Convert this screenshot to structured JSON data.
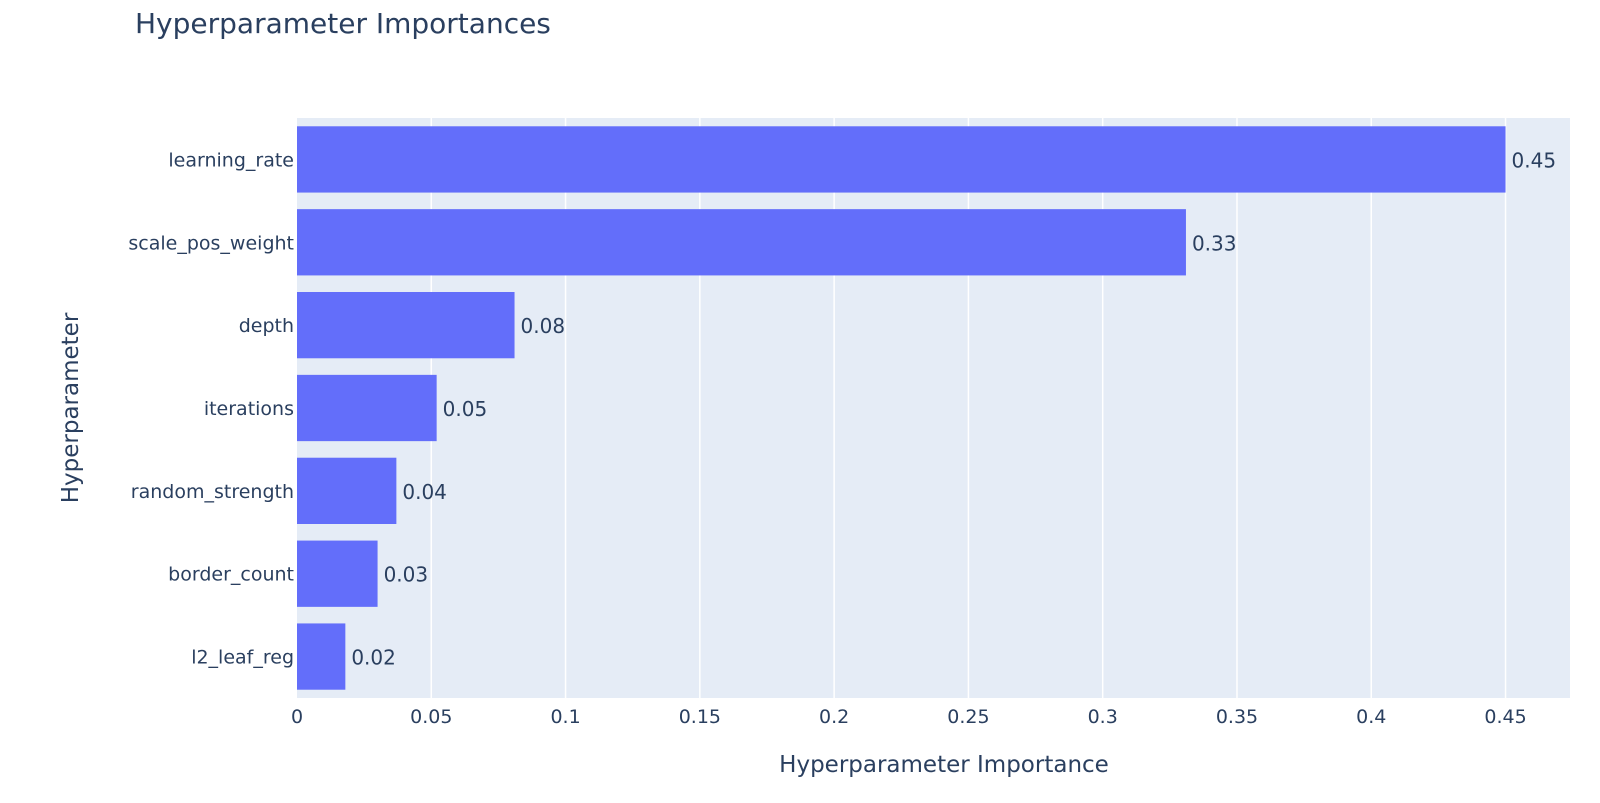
{
  "chart_data": {
    "type": "bar",
    "orientation": "horizontal",
    "title": "Hyperparameter Importances",
    "xlabel": "Hyperparameter Importance",
    "ylabel": "Hyperparameter",
    "categories": [
      "learning_rate",
      "scale_pos_weight",
      "depth",
      "iterations",
      "random_strength",
      "border_count",
      "l2_leaf_reg"
    ],
    "values": [
      0.45,
      0.331,
      0.081,
      0.052,
      0.037,
      0.03,
      0.018
    ],
    "data_labels": [
      "0.45",
      "0.33",
      "0.08",
      "0.05",
      "0.04",
      "0.03",
      "0.02"
    ],
    "xlim": [
      0,
      0.474
    ],
    "x_ticks": [
      0,
      0.05,
      0.1,
      0.15,
      0.2,
      0.25,
      0.3,
      0.35,
      0.4,
      0.45
    ],
    "x_tick_labels": [
      "0",
      "0.05",
      "0.1",
      "0.15",
      "0.2",
      "0.25",
      "0.3",
      "0.35",
      "0.4",
      "0.45"
    ],
    "grid": true,
    "legend": "none",
    "colors": {
      "bar": "#636efa",
      "plot_background": "#e5ecf6",
      "grid": "#ffffff",
      "text": "#2a3f5f",
      "page_background": "#ffffff"
    }
  }
}
